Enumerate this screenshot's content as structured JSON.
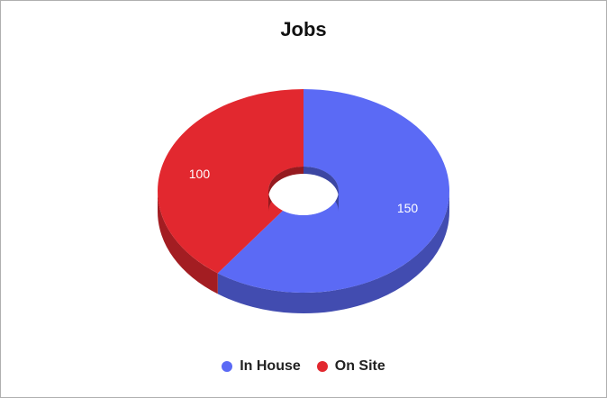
{
  "chart_data": {
    "type": "pie",
    "title": "Jobs",
    "labels": [
      "In House",
      "On Site"
    ],
    "values": [
      150,
      100
    ],
    "data_labels": [
      "150",
      "100"
    ],
    "colors": [
      "#5b6af5",
      "#e2282f"
    ],
    "style": "3d-donut",
    "legend": "bottom-center"
  }
}
